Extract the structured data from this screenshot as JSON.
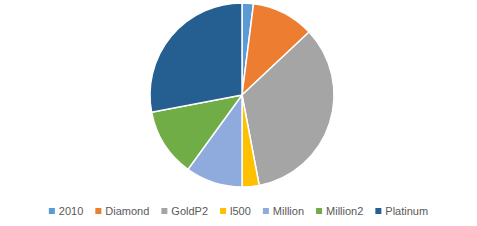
{
  "chart_data": {
    "type": "pie",
    "categories": [
      "2010",
      "Diamond",
      "GoldP2",
      "l500",
      "Million",
      "Million2",
      "Platinum"
    ],
    "values": [
      2,
      11,
      34,
      3,
      10,
      12,
      28
    ],
    "colors": [
      "#5b9bd5",
      "#ed7d31",
      "#a5a5a5",
      "#ffc000",
      "#8faadc",
      "#70ad47",
      "#255e91"
    ],
    "legend": "bottom"
  }
}
